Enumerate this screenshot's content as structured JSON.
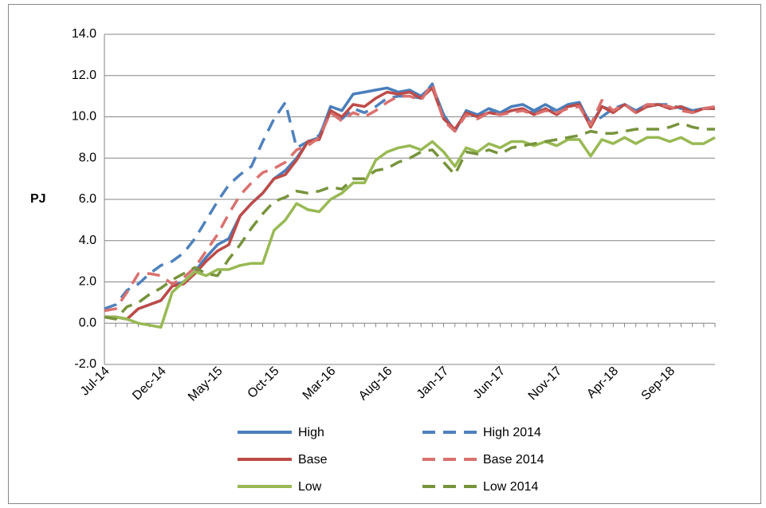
{
  "chart_data": {
    "type": "line",
    "y_label": "PJ",
    "categories": [
      "Jul-14",
      null,
      null,
      null,
      null,
      "Dec-14",
      null,
      null,
      null,
      null,
      "May-15",
      null,
      null,
      null,
      null,
      "Oct-15",
      null,
      null,
      null,
      null,
      "Mar-16",
      null,
      null,
      null,
      null,
      "Aug-16",
      null,
      null,
      null,
      null,
      "Jan-17",
      null,
      null,
      null,
      null,
      "Jun-17",
      null,
      null,
      null,
      null,
      "Nov-17",
      null,
      null,
      null,
      null,
      "Apr-18",
      null,
      null,
      null,
      null,
      "Sep-18",
      null,
      null,
      null,
      null
    ],
    "ylim": [
      -2,
      14
    ],
    "yticks": [
      {
        "value": -2,
        "label": "-2.0"
      },
      {
        "value": 0,
        "label": "0.0"
      },
      {
        "value": 2,
        "label": "2.0"
      },
      {
        "value": 4,
        "label": "4.0"
      },
      {
        "value": 6,
        "label": "6.0"
      },
      {
        "value": 8,
        "label": "8.0"
      },
      {
        "value": 10,
        "label": "10.0"
      },
      {
        "value": 12,
        "label": "12.0"
      },
      {
        "value": 14,
        "label": "14.0"
      }
    ],
    "grid": true,
    "series": [
      {
        "name": "High",
        "color": "#4a7ebb",
        "dashed": false,
        "values": [
          0.3,
          0.3,
          0.2,
          0.7,
          0.9,
          1.1,
          1.8,
          2.0,
          2.5,
          3.2,
          3.8,
          4.1,
          5.2,
          5.8,
          6.3,
          7.0,
          7.4,
          8.0,
          8.8,
          9.0,
          10.5,
          10.3,
          11.1,
          11.2,
          11.3,
          11.4,
          11.2,
          11.3,
          11.0,
          11.5,
          10.1,
          9.3,
          10.3,
          10.1,
          10.4,
          10.2,
          10.5,
          10.6,
          10.3,
          10.6,
          10.3,
          10.6,
          10.7,
          9.6,
          10.5,
          10.3,
          10.6,
          10.3,
          10.5,
          10.6,
          10.4,
          10.5,
          10.3,
          10.4,
          10.4
        ]
      },
      {
        "name": "High 2014",
        "color": "#4f81bd",
        "dashed": true,
        "values": [
          0.7,
          0.9,
          1.6,
          1.9,
          2.4,
          2.8,
          3.0,
          3.4,
          4.1,
          5.0,
          5.9,
          6.7,
          7.2,
          7.6,
          8.8,
          9.9,
          10.7,
          8.5,
          8.8,
          9.1,
          10.3,
          9.9,
          10.4,
          10.2,
          10.5,
          10.9,
          11.0,
          11.0,
          10.9,
          11.6,
          9.9,
          9.4,
          10.2,
          10.0,
          10.3,
          10.2,
          10.3,
          10.4,
          10.2,
          10.4,
          10.3,
          10.5,
          10.6,
          9.7,
          10.0,
          10.4,
          10.6,
          10.3,
          10.6,
          10.6,
          10.6,
          10.4,
          10.3,
          10.4,
          10.5
        ]
      },
      {
        "name": "Base",
        "color": "#be4b48",
        "dashed": false,
        "values": [
          0.3,
          0.3,
          0.2,
          0.7,
          0.9,
          1.1,
          1.8,
          1.9,
          2.4,
          3.0,
          3.5,
          3.8,
          5.2,
          5.8,
          6.3,
          7.0,
          7.2,
          7.9,
          8.8,
          8.9,
          10.3,
          10.0,
          10.6,
          10.5,
          10.9,
          11.2,
          11.1,
          11.2,
          10.9,
          11.4,
          9.9,
          9.4,
          10.2,
          10.0,
          10.2,
          10.1,
          10.3,
          10.4,
          10.1,
          10.4,
          10.1,
          10.5,
          10.6,
          9.5,
          10.5,
          10.2,
          10.6,
          10.2,
          10.5,
          10.6,
          10.4,
          10.5,
          10.2,
          10.4,
          10.4
        ]
      },
      {
        "name": "Base 2014",
        "color": "#d9716e",
        "dashed": true,
        "values": [
          0.6,
          0.7,
          1.5,
          2.4,
          2.4,
          2.3,
          1.9,
          2.2,
          2.7,
          3.5,
          4.3,
          5.3,
          6.2,
          6.8,
          7.3,
          7.5,
          7.8,
          8.4,
          8.6,
          9.0,
          10.2,
          9.8,
          10.2,
          10.0,
          10.3,
          10.7,
          11.0,
          11.0,
          10.8,
          11.6,
          9.8,
          9.3,
          10.1,
          9.9,
          10.2,
          10.1,
          10.2,
          10.3,
          10.1,
          10.3,
          10.2,
          10.4,
          10.5,
          9.6,
          10.8,
          10.3,
          10.6,
          10.2,
          10.6,
          10.6,
          10.5,
          10.3,
          10.2,
          10.4,
          10.5
        ]
      },
      {
        "name": "Low",
        "color": "#98b954",
        "dashed": false,
        "values": [
          0.3,
          0.3,
          0.2,
          0.0,
          -0.1,
          -0.2,
          1.5,
          2.0,
          2.5,
          2.3,
          2.6,
          2.6,
          2.8,
          2.9,
          2.9,
          4.5,
          5.0,
          5.8,
          5.5,
          5.4,
          6.0,
          6.3,
          6.8,
          6.8,
          7.9,
          8.3,
          8.5,
          8.6,
          8.4,
          8.8,
          8.3,
          7.6,
          8.5,
          8.3,
          8.7,
          8.5,
          8.8,
          8.8,
          8.6,
          8.8,
          8.6,
          8.9,
          8.9,
          8.1,
          8.9,
          8.7,
          9.0,
          8.7,
          9.0,
          9.0,
          8.8,
          9.0,
          8.7,
          8.7,
          9.0
        ]
      },
      {
        "name": "Low 2014",
        "color": "#77933c",
        "dashed": true,
        "values": [
          0.3,
          0.2,
          0.8,
          1.0,
          1.4,
          1.7,
          2.1,
          2.4,
          2.7,
          2.4,
          2.3,
          3.1,
          3.8,
          4.6,
          5.3,
          5.9,
          6.1,
          6.4,
          6.3,
          6.4,
          6.6,
          6.5,
          7.0,
          7.0,
          7.4,
          7.5,
          7.8,
          8.0,
          8.3,
          8.4,
          7.8,
          7.2,
          8.3,
          8.2,
          8.4,
          8.2,
          8.5,
          8.6,
          8.7,
          8.8,
          8.9,
          9.0,
          9.1,
          9.3,
          9.2,
          9.2,
          9.3,
          9.4,
          9.4,
          9.4,
          9.5,
          9.7,
          9.5,
          9.4,
          9.4
        ]
      }
    ]
  }
}
